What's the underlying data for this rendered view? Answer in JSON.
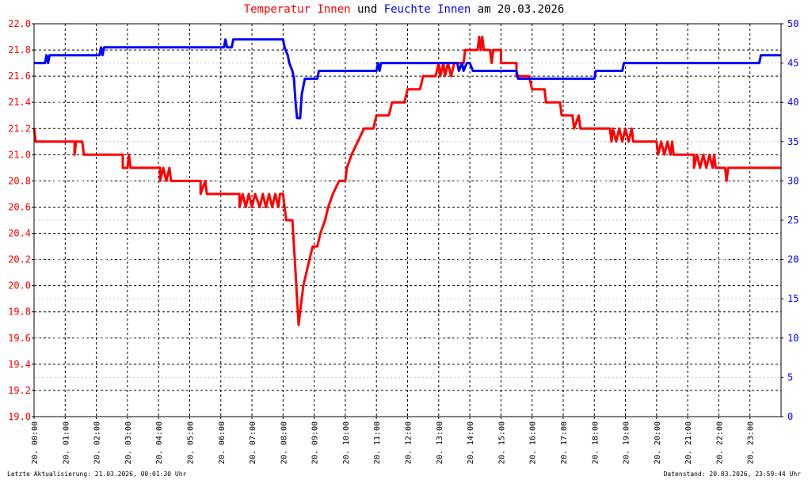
{
  "title": {
    "part1": "Temperatur Innen",
    "part2": " und ",
    "part3": "Feuchte Innen",
    "part4": " am 20.03.2026"
  },
  "footer": {
    "left": "Letzte Aktualisierung: 21.03.2026, 00:01:30 Uhr",
    "right": "Datenstand: 20.03.2026, 23:59:44 Uhr"
  },
  "colors": {
    "temperature": "#ff0000",
    "humidity": "#0000ff",
    "grid": "#000000",
    "background": "#ffffff"
  },
  "chart_data": {
    "type": "line",
    "title": "Temperatur Innen und Feuchte Innen am 20.03.2026",
    "x_unit": "hours",
    "xlim": [
      0,
      24
    ],
    "x_ticks": [
      "20. 00:00",
      "20. 01:00",
      "20. 02:00",
      "20. 03:00",
      "20. 04:00",
      "20. 05:00",
      "20. 06:00",
      "20. 07:00",
      "20. 08:00",
      "20. 09:00",
      "20. 10:00",
      "20. 11:00",
      "20. 12:00",
      "20. 13:00",
      "20. 14:00",
      "20. 15:00",
      "20. 16:00",
      "20. 17:00",
      "20. 18:00",
      "20. 19:00",
      "20. 20:00",
      "20. 21:00",
      "20. 22:00",
      "20. 23:00"
    ],
    "y_left": {
      "range": [
        19.0,
        22.0
      ],
      "ticks": [
        "19.0",
        "19.2",
        "19.4",
        "19.6",
        "19.8",
        "20.0",
        "20.2",
        "20.4",
        "20.6",
        "20.8",
        "21.0",
        "21.2",
        "21.4",
        "21.6",
        "21.8",
        "22.0"
      ],
      "color": "#ff0000"
    },
    "y_right": {
      "range": [
        0,
        50
      ],
      "ticks": [
        "0",
        "5",
        "10",
        "15",
        "20",
        "25",
        "30",
        "35",
        "40",
        "45",
        "50"
      ],
      "color": "#0000ff"
    },
    "grid": true,
    "series": [
      {
        "name": "Temperatur Innen",
        "axis": "left",
        "color": "#ff0000",
        "points": [
          [
            0.0,
            21.2
          ],
          [
            0.05,
            21.1
          ],
          [
            1.3,
            21.1
          ],
          [
            1.3,
            21.0
          ],
          [
            1.35,
            21.1
          ],
          [
            1.55,
            21.1
          ],
          [
            1.6,
            21.0
          ],
          [
            2.85,
            21.0
          ],
          [
            2.85,
            20.9
          ],
          [
            3.0,
            20.9
          ],
          [
            3.05,
            21.0
          ],
          [
            3.1,
            20.9
          ],
          [
            4.05,
            20.9
          ],
          [
            4.05,
            20.8
          ],
          [
            4.15,
            20.9
          ],
          [
            4.25,
            20.8
          ],
          [
            4.35,
            20.9
          ],
          [
            4.4,
            20.8
          ],
          [
            5.35,
            20.8
          ],
          [
            5.35,
            20.7
          ],
          [
            5.5,
            20.8
          ],
          [
            5.55,
            20.7
          ],
          [
            6.6,
            20.7
          ],
          [
            6.6,
            20.6
          ],
          [
            6.7,
            20.7
          ],
          [
            6.8,
            20.6
          ],
          [
            6.9,
            20.7
          ],
          [
            7.0,
            20.6
          ],
          [
            7.1,
            20.7
          ],
          [
            7.25,
            20.6
          ],
          [
            7.35,
            20.7
          ],
          [
            7.45,
            20.6
          ],
          [
            7.55,
            20.7
          ],
          [
            7.65,
            20.6
          ],
          [
            7.75,
            20.7
          ],
          [
            7.85,
            20.6
          ],
          [
            7.9,
            20.7
          ],
          [
            8.0,
            20.7
          ],
          [
            8.05,
            20.6
          ],
          [
            8.1,
            20.5
          ],
          [
            8.3,
            20.5
          ],
          [
            8.4,
            20.1
          ],
          [
            8.45,
            19.9
          ],
          [
            8.5,
            19.7
          ],
          [
            8.55,
            19.8
          ],
          [
            8.65,
            20.0
          ],
          [
            8.75,
            20.1
          ],
          [
            8.85,
            20.2
          ],
          [
            8.95,
            20.3
          ],
          [
            9.1,
            20.3
          ],
          [
            9.2,
            20.4
          ],
          [
            9.35,
            20.5
          ],
          [
            9.45,
            20.6
          ],
          [
            9.6,
            20.7
          ],
          [
            9.8,
            20.8
          ],
          [
            10.0,
            20.8
          ],
          [
            10.05,
            20.9
          ],
          [
            10.2,
            21.0
          ],
          [
            10.4,
            21.1
          ],
          [
            10.6,
            21.2
          ],
          [
            10.9,
            21.2
          ],
          [
            11.0,
            21.3
          ],
          [
            11.4,
            21.3
          ],
          [
            11.5,
            21.4
          ],
          [
            11.9,
            21.4
          ],
          [
            12.0,
            21.5
          ],
          [
            12.4,
            21.5
          ],
          [
            12.5,
            21.6
          ],
          [
            12.9,
            21.6
          ],
          [
            13.0,
            21.7
          ],
          [
            13.05,
            21.6
          ],
          [
            13.15,
            21.7
          ],
          [
            13.2,
            21.6
          ],
          [
            13.3,
            21.7
          ],
          [
            13.4,
            21.6
          ],
          [
            13.5,
            21.7
          ],
          [
            13.6,
            21.7
          ],
          [
            13.7,
            21.7
          ],
          [
            13.8,
            21.7
          ],
          [
            13.85,
            21.8
          ],
          [
            14.25,
            21.8
          ],
          [
            14.3,
            21.9
          ],
          [
            14.35,
            21.8
          ],
          [
            14.4,
            21.9
          ],
          [
            14.45,
            21.8
          ],
          [
            14.65,
            21.8
          ],
          [
            14.7,
            21.7
          ],
          [
            14.75,
            21.8
          ],
          [
            15.0,
            21.8
          ],
          [
            15.0,
            21.7
          ],
          [
            15.5,
            21.7
          ],
          [
            15.5,
            21.6
          ],
          [
            15.9,
            21.6
          ],
          [
            16.0,
            21.5
          ],
          [
            16.4,
            21.5
          ],
          [
            16.45,
            21.4
          ],
          [
            16.9,
            21.4
          ],
          [
            16.95,
            21.3
          ],
          [
            17.3,
            21.3
          ],
          [
            17.35,
            21.2
          ],
          [
            17.5,
            21.3
          ],
          [
            17.55,
            21.2
          ],
          [
            18.5,
            21.2
          ],
          [
            18.55,
            21.1
          ],
          [
            18.6,
            21.2
          ],
          [
            18.7,
            21.1
          ],
          [
            18.8,
            21.2
          ],
          [
            18.9,
            21.1
          ],
          [
            19.0,
            21.2
          ],
          [
            19.1,
            21.1
          ],
          [
            19.2,
            21.2
          ],
          [
            19.25,
            21.1
          ],
          [
            20.0,
            21.1
          ],
          [
            20.05,
            21.0
          ],
          [
            20.15,
            21.1
          ],
          [
            20.25,
            21.0
          ],
          [
            20.35,
            21.1
          ],
          [
            20.45,
            21.0
          ],
          [
            20.5,
            21.1
          ],
          [
            20.55,
            21.0
          ],
          [
            21.2,
            21.0
          ],
          [
            21.2,
            20.9
          ],
          [
            21.3,
            21.0
          ],
          [
            21.4,
            20.9
          ],
          [
            21.5,
            21.0
          ],
          [
            21.6,
            20.9
          ],
          [
            21.7,
            21.0
          ],
          [
            21.8,
            20.9
          ],
          [
            21.85,
            21.0
          ],
          [
            21.9,
            20.9
          ],
          [
            22.2,
            20.9
          ],
          [
            22.25,
            20.8
          ],
          [
            22.3,
            20.9
          ],
          [
            24.0,
            20.9
          ]
        ]
      },
      {
        "name": "Feuchte Innen",
        "axis": "right",
        "color": "#0000ff",
        "points": [
          [
            0.0,
            45
          ],
          [
            0.35,
            45
          ],
          [
            0.4,
            46
          ],
          [
            0.45,
            45
          ],
          [
            0.5,
            46
          ],
          [
            2.1,
            46
          ],
          [
            2.15,
            47
          ],
          [
            2.2,
            46
          ],
          [
            2.25,
            47
          ],
          [
            6.1,
            47
          ],
          [
            6.15,
            48
          ],
          [
            6.2,
            47
          ],
          [
            6.35,
            47
          ],
          [
            6.4,
            48
          ],
          [
            8.0,
            48
          ],
          [
            8.05,
            47
          ],
          [
            8.15,
            46
          ],
          [
            8.2,
            45
          ],
          [
            8.3,
            44
          ],
          [
            8.35,
            43
          ],
          [
            8.4,
            40
          ],
          [
            8.45,
            38
          ],
          [
            8.55,
            38
          ],
          [
            8.6,
            41
          ],
          [
            8.7,
            43
          ],
          [
            9.1,
            43
          ],
          [
            9.15,
            44
          ],
          [
            11.0,
            44
          ],
          [
            11.05,
            45
          ],
          [
            11.1,
            44
          ],
          [
            11.15,
            45
          ],
          [
            13.6,
            45
          ],
          [
            13.65,
            44
          ],
          [
            13.75,
            45
          ],
          [
            13.8,
            44
          ],
          [
            13.9,
            45
          ],
          [
            14.0,
            45
          ],
          [
            14.1,
            44
          ],
          [
            15.5,
            44
          ],
          [
            15.55,
            43
          ],
          [
            18.0,
            43
          ],
          [
            18.05,
            44
          ],
          [
            18.9,
            44
          ],
          [
            18.95,
            45
          ],
          [
            23.3,
            45
          ],
          [
            23.35,
            46
          ],
          [
            24.0,
            46
          ]
        ]
      }
    ]
  }
}
